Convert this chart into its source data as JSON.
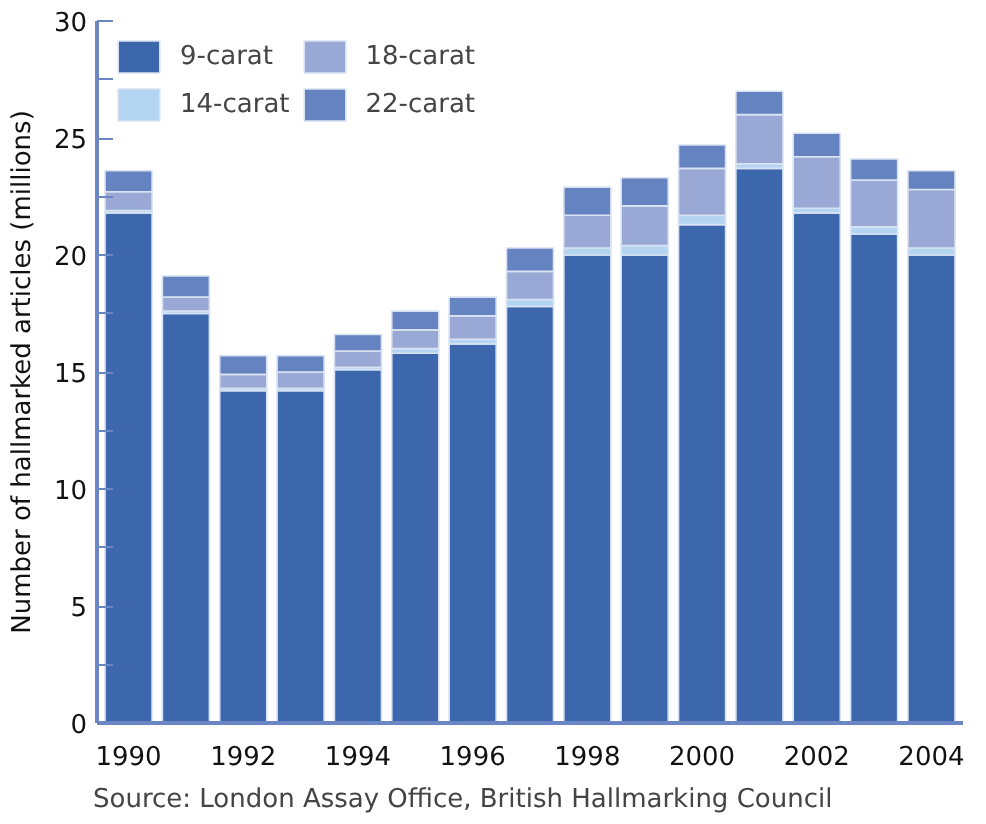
{
  "chart_data": {
    "type": "bar",
    "stacked": true,
    "ylabel": "Number of hallmarked articles (millions)",
    "categories": [
      "1990",
      null,
      "1992",
      null,
      "1994",
      null,
      "1996",
      null,
      "1998",
      null,
      "2000",
      null,
      "2002",
      null,
      "2004"
    ],
    "series": [
      {
        "name": "9-carat",
        "color": "#3c67ad",
        "values": [
          21.8,
          17.5,
          14.2,
          14.2,
          15.1,
          15.8,
          16.2,
          17.8,
          20.0,
          20.0,
          21.3,
          23.7,
          21.8,
          20.9,
          20.0
        ]
      },
      {
        "name": "14-carat",
        "color": "#b3d5f2",
        "values": [
          0.1,
          0.1,
          0.1,
          0.1,
          0.1,
          0.2,
          0.2,
          0.3,
          0.3,
          0.4,
          0.4,
          0.2,
          0.2,
          0.3,
          0.3
        ]
      },
      {
        "name": "18-carat",
        "color": "#9aa8d5",
        "values": [
          0.8,
          0.6,
          0.6,
          0.7,
          0.7,
          0.8,
          1.0,
          1.2,
          1.4,
          1.7,
          2.0,
          2.1,
          2.2,
          2.0,
          2.5
        ]
      },
      {
        "name": "22-carat",
        "color": "#6483c0",
        "values": [
          0.9,
          0.9,
          0.8,
          0.7,
          0.7,
          0.8,
          0.8,
          1.0,
          1.2,
          1.2,
          1.0,
          1.0,
          1.0,
          0.9,
          0.8
        ]
      }
    ],
    "ylim": [
      0,
      30
    ],
    "yticks": [
      0,
      5,
      10,
      15,
      20,
      25,
      30
    ],
    "grid": false,
    "legend": "top left",
    "annotations": [
      "Source: London Assay Office, British Hallmarking Council"
    ]
  }
}
